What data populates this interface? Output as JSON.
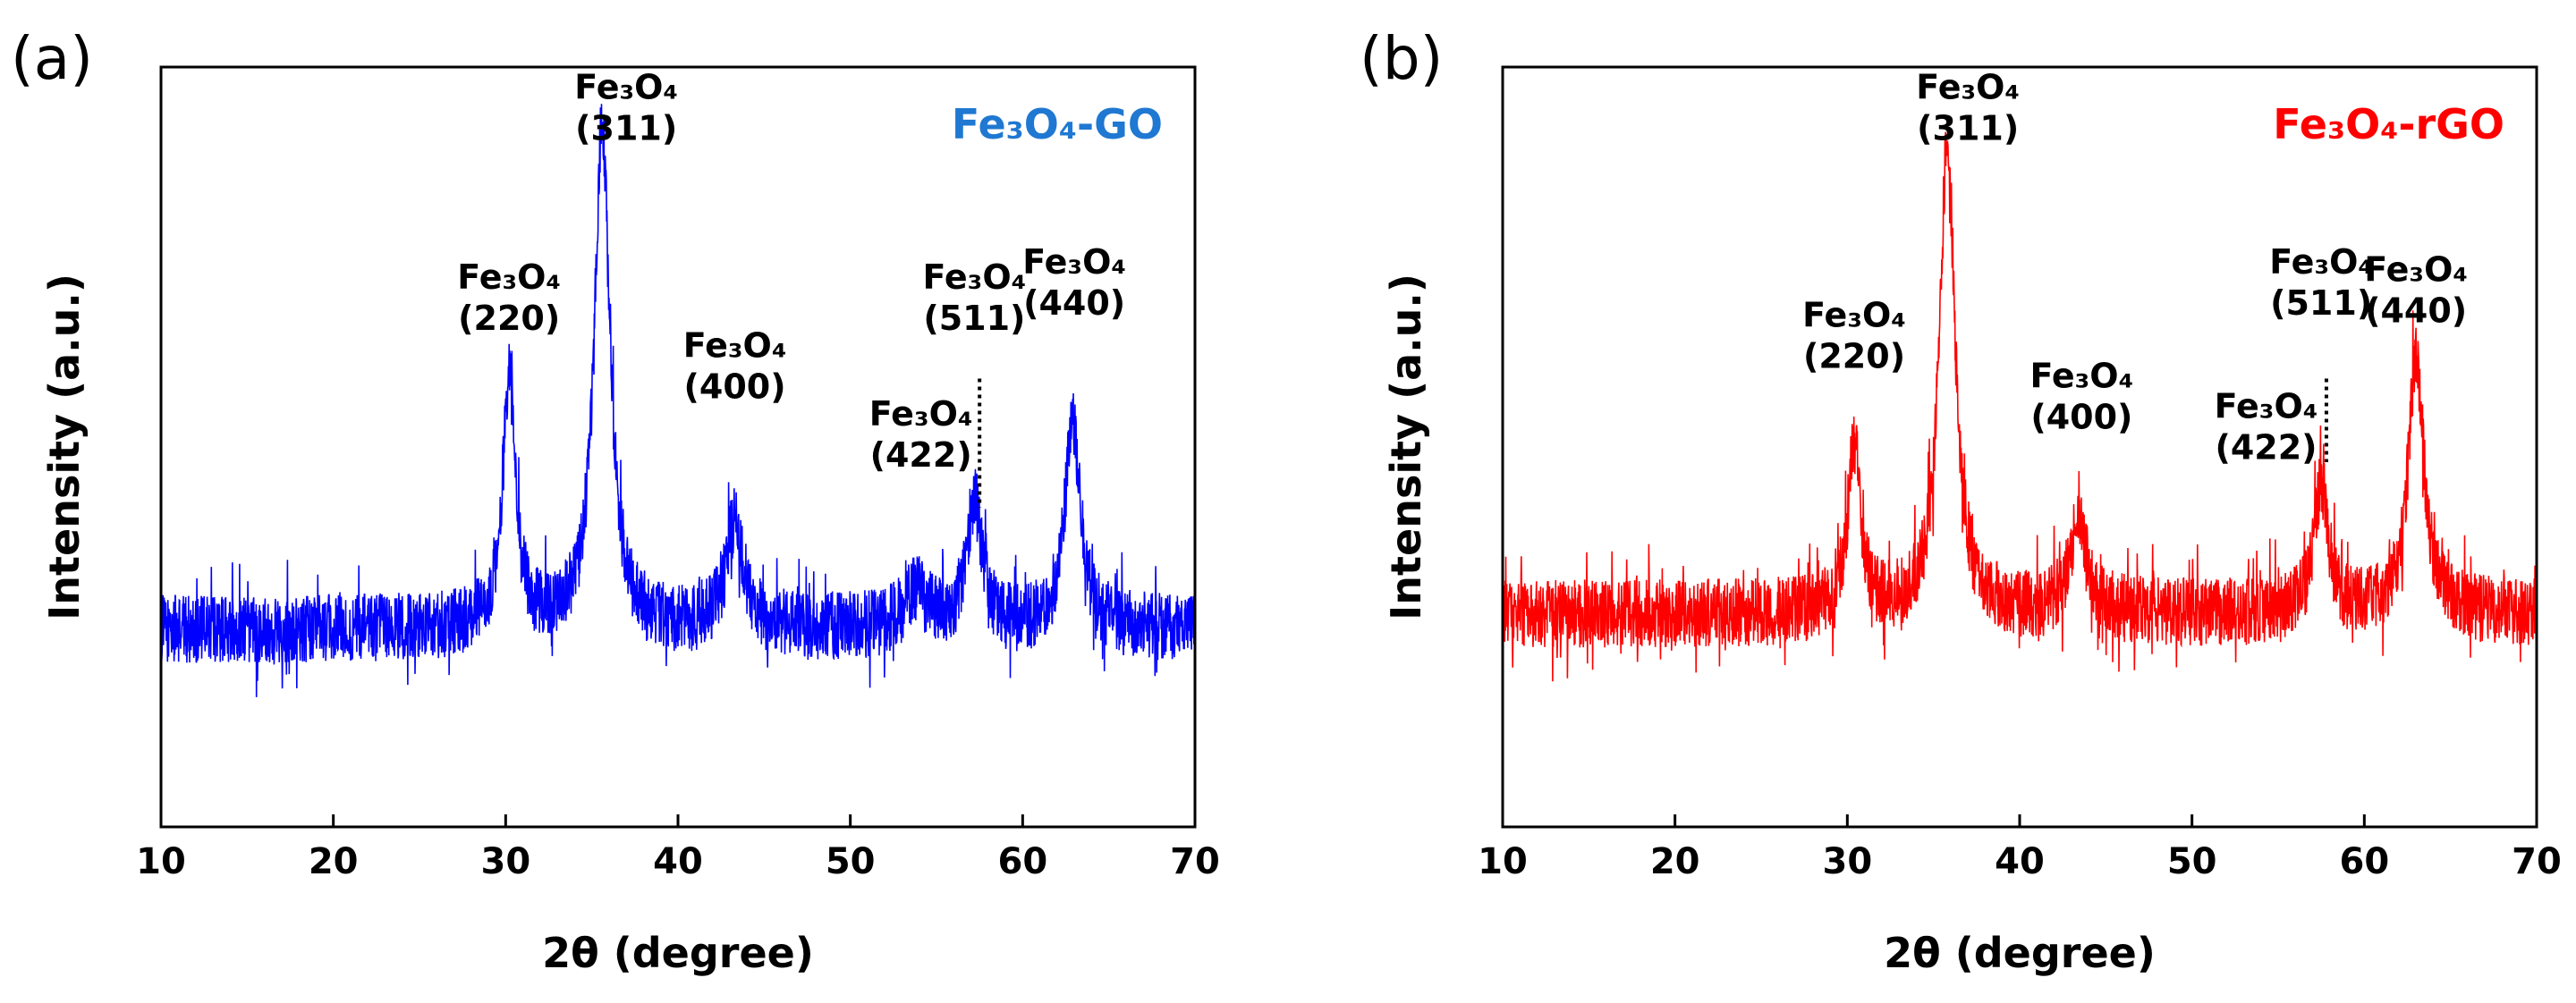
{
  "chart_data": [
    {
      "type": "line",
      "panel_label": "(a)",
      "title": "",
      "xlabel": "2θ (degree)",
      "ylabel": "Intensity (a.u.)",
      "xlim": [
        10,
        70
      ],
      "ylim": [
        0,
        100
      ],
      "xticks": [
        "10",
        "20",
        "30",
        "40",
        "50",
        "60",
        "70"
      ],
      "series": [
        {
          "name": "Fe3O4-GO",
          "legend_text": "Fe₃O₄-GO",
          "color": "#0000ff",
          "legend_color": "#1f78d1",
          "baseline": 26,
          "noise": 4.5,
          "peaks": [
            {
              "x": 30.2,
              "height": 33,
              "width": 0.45
            },
            {
              "x": 35.6,
              "height": 66,
              "width": 0.55
            },
            {
              "x": 43.3,
              "height": 14,
              "width": 0.6
            },
            {
              "x": 53.8,
              "height": 5,
              "width": 0.8
            },
            {
              "x": 57.2,
              "height": 17,
              "width": 0.5
            },
            {
              "x": 62.9,
              "height": 27,
              "width": 0.55
            }
          ]
        }
      ],
      "annotations": [
        {
          "line1": "Fe₃O₄",
          "line2": "(220)",
          "x": 30.2,
          "y": 72
        },
        {
          "line1": "Fe₃O₄",
          "line2": "(311)",
          "x": 37.0,
          "y": 97
        },
        {
          "line1": "Fe₃O₄",
          "line2": "(400)",
          "x": 43.3,
          "y": 63
        },
        {
          "line1": "Fe₃O₄",
          "line2": "(422)",
          "x": 54.1,
          "y": 54
        },
        {
          "line1": "Fe₃O₄",
          "line2": "(511)",
          "x": 57.2,
          "y": 72
        },
        {
          "line1": "Fe₃O₄",
          "line2": "(440)",
          "x": 63.0,
          "y": 74
        }
      ],
      "dotted_marker": {
        "x": 57.5,
        "y_from": 42,
        "y_to": 59
      }
    },
    {
      "type": "line",
      "panel_label": "(b)",
      "title": "",
      "xlabel": "2θ (degree)",
      "ylabel": "Intensity (a.u.)",
      "xlim": [
        10,
        70
      ],
      "ylim": [
        0,
        100
      ],
      "xticks": [
        "10",
        "20",
        "30",
        "40",
        "50",
        "60",
        "70"
      ],
      "series": [
        {
          "name": "Fe3O4-rGO",
          "legend_text": "Fe₃O₄-rGO",
          "color": "#ff0000",
          "legend_color": "#ff0000",
          "baseline": 28,
          "noise": 4.5,
          "peaks": [
            {
              "x": 30.4,
              "height": 22,
              "width": 0.45
            },
            {
              "x": 35.8,
              "height": 62,
              "width": 0.55
            },
            {
              "x": 43.4,
              "height": 12,
              "width": 0.6
            },
            {
              "x": 57.5,
              "height": 17,
              "width": 0.5
            },
            {
              "x": 63.0,
              "height": 34,
              "width": 0.55
            }
          ]
        }
      ],
      "annotations": [
        {
          "line1": "Fe₃O₄",
          "line2": "(220)",
          "x": 30.4,
          "y": 67
        },
        {
          "line1": "Fe₃O₄",
          "line2": "(311)",
          "x": 37.0,
          "y": 97
        },
        {
          "line1": "Fe₃O₄",
          "line2": "(400)",
          "x": 43.6,
          "y": 59
        },
        {
          "line1": "Fe₃O₄",
          "line2": "(422)",
          "x": 54.3,
          "y": 55
        },
        {
          "line1": "Fe₃O₄",
          "line2": "(511)",
          "x": 57.5,
          "y": 74
        },
        {
          "line1": "Fe₃O₄",
          "line2": "(440)",
          "x": 63.0,
          "y": 73
        }
      ],
      "dotted_marker": {
        "x": 57.8,
        "y_from": 48,
        "y_to": 59
      }
    }
  ]
}
